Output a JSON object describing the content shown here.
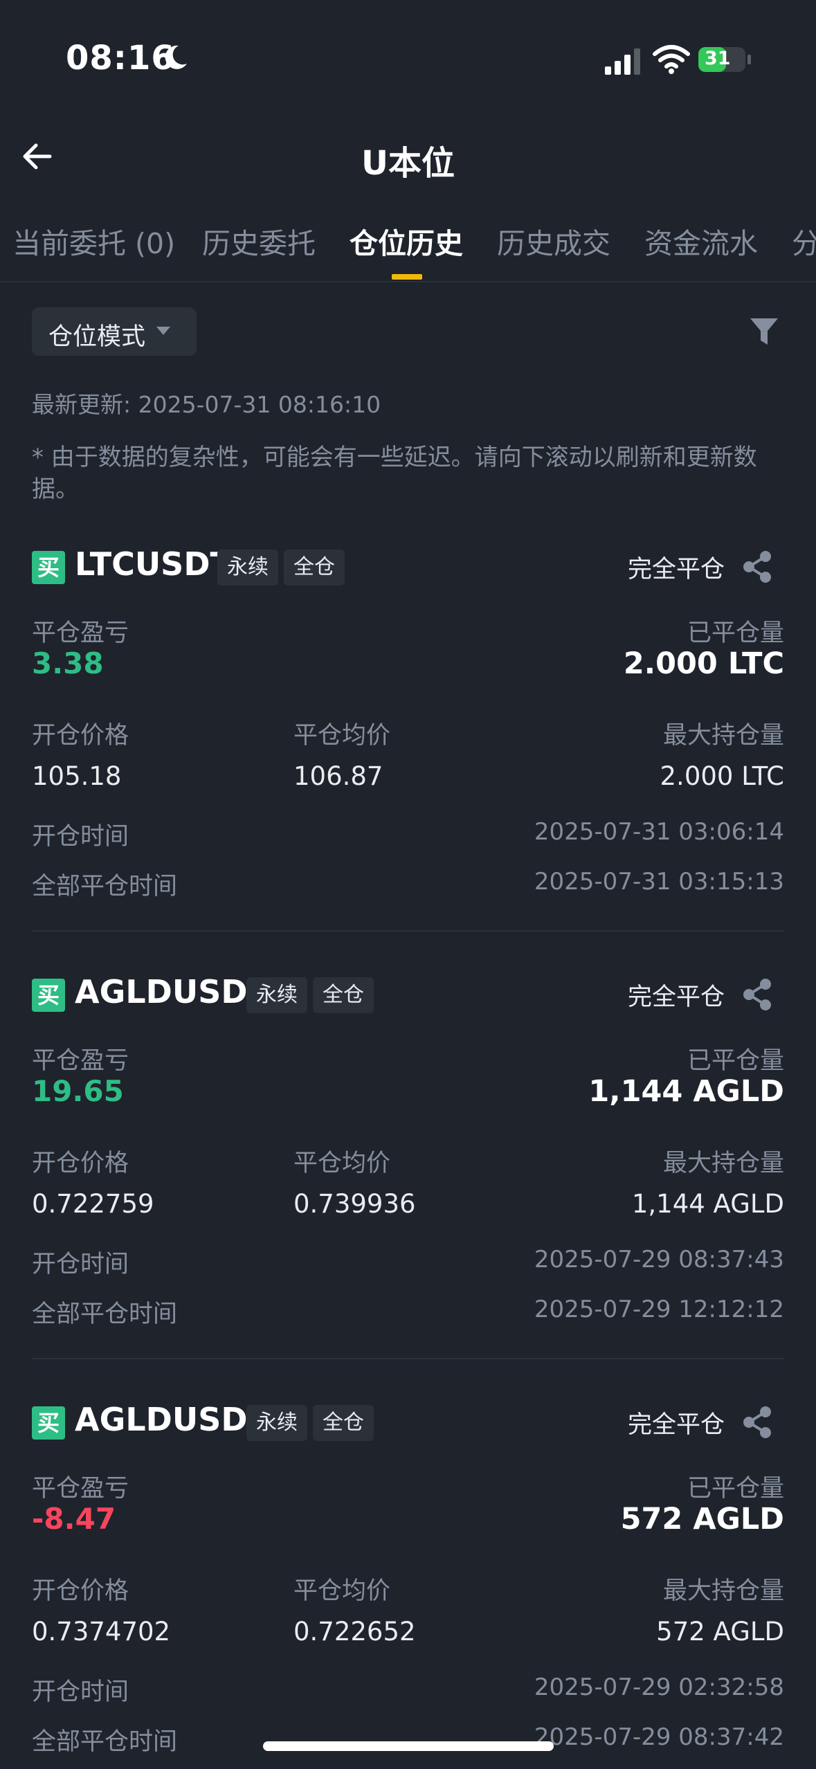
{
  "status_bar": {
    "time": "08:16",
    "battery": "31"
  },
  "nav": {
    "title": "U本位"
  },
  "tabs": [
    {
      "label": "当前委托 (0)"
    },
    {
      "label": "历史委托"
    },
    {
      "label": "仓位历史"
    },
    {
      "label": "历史成交"
    },
    {
      "label": "资金流水"
    },
    {
      "label": "分"
    }
  ],
  "mode_select": {
    "label": "仓位模式"
  },
  "update_line": "最新更新: 2025-07-31 08:16:10",
  "notice": "* 由于数据的复杂性，可能会有一些延迟。请向下滚动以刷新和更新数据。",
  "labels": {
    "pnl": "平仓盈亏",
    "closed_qty": "已平仓量",
    "open_price": "开仓价格",
    "close_avg": "平仓均价",
    "max_qty": "最大持仓量",
    "open_time": "开仓时间",
    "close_time": "全部平仓时间"
  },
  "positions": [
    {
      "side": "买",
      "symbol": "LTCUSDT",
      "tag1": "永续",
      "tag2": "全仓",
      "status": "完全平仓",
      "pnl": "3.38",
      "closed_qty": "2.000 LTC",
      "open_price": "105.18",
      "close_avg": "106.87",
      "max_qty": "2.000 LTC",
      "open_time": "2025-07-31 03:06:14",
      "close_time": "2025-07-31 03:15:13"
    },
    {
      "side": "买",
      "symbol": "AGLDUSDT",
      "tag1": "永续",
      "tag2": "全仓",
      "status": "完全平仓",
      "pnl": "19.65",
      "closed_qty": "1,144 AGLD",
      "open_price": "0.722759",
      "close_avg": "0.739936",
      "max_qty": "1,144 AGLD",
      "open_time": "2025-07-29 08:37:43",
      "close_time": "2025-07-29 12:12:12"
    },
    {
      "side": "买",
      "symbol": "AGLDUSDT",
      "tag1": "永续",
      "tag2": "全仓",
      "status": "完全平仓",
      "pnl": "-8.47",
      "closed_qty": "572 AGLD",
      "open_price": "0.7374702",
      "close_avg": "0.722652",
      "max_qty": "572 AGLD",
      "open_time": "2025-07-29 02:32:58",
      "close_time": "2025-07-29 08:37:42"
    }
  ],
  "colors": {
    "positive": "#2ebd85",
    "negative": "#f6465d",
    "accent": "#f0b90b",
    "background": "#1f232c"
  }
}
